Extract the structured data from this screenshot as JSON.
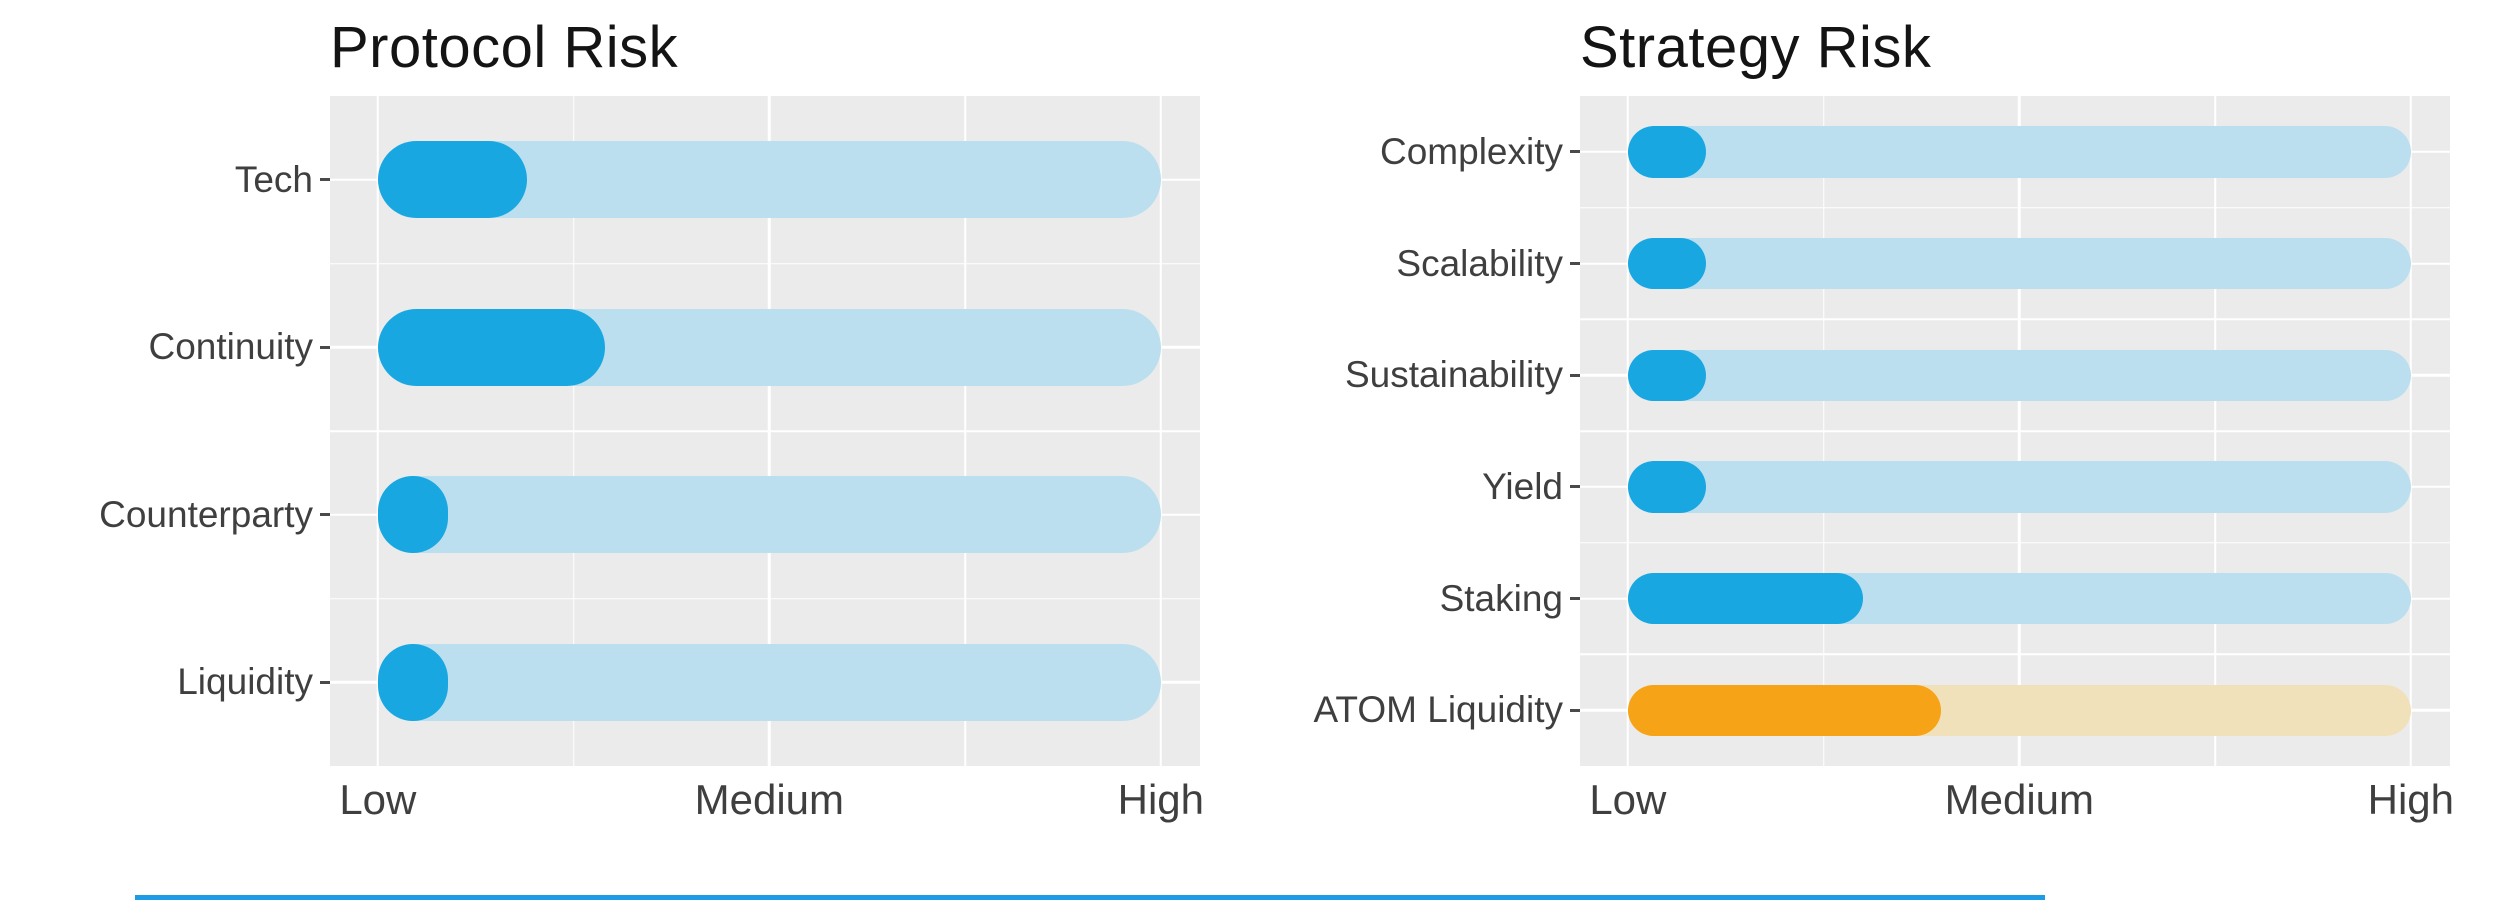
{
  "page": {
    "background": "#FFFFFF"
  },
  "colors": {
    "panel_bg": "#EBEBEB",
    "gridline": "#FFFFFF",
    "bar_blue": "#19A7E2",
    "track_blue": "#BCDFEF",
    "bar_orange": "#F6A318",
    "track_orange": "#F1E1BB",
    "title_text": "#141414",
    "axis_text": "#3F3F3F",
    "divider_blue": "#1E9BE5"
  },
  "chart_data": [
    {
      "type": "bar",
      "orientation": "horizontal",
      "title": "Protocol Risk",
      "categories": [
        "Tech",
        "Continuity",
        "Counterparty",
        "Liquidity"
      ],
      "values": [
        0.19,
        0.29,
        0.09,
        0.09
      ],
      "value_scale": "fraction of Low-to-High axis",
      "bar_colors": [
        "#19A7E2",
        "#19A7E2",
        "#19A7E2",
        "#19A7E2"
      ],
      "track_colors": [
        "#BCDFEF",
        "#BCDFEF",
        "#BCDFEF",
        "#BCDFEF"
      ],
      "xlabel": "",
      "ylabel": "",
      "xlim": [
        0,
        1
      ],
      "x_ticks": [
        {
          "label": "Low",
          "pos": 0
        },
        {
          "label": "Medium",
          "pos": 0.5
        },
        {
          "label": "High",
          "pos": 1
        }
      ],
      "grid": "white major and minor gridlines on grey panel",
      "legend": "none"
    },
    {
      "type": "bar",
      "orientation": "horizontal",
      "title": "Strategy Risk",
      "categories": [
        "Complexity",
        "Scalability",
        "Sustainability",
        "Yield",
        "Staking",
        "ATOM Liquidity"
      ],
      "values": [
        0.1,
        0.1,
        0.1,
        0.1,
        0.3,
        0.4
      ],
      "value_scale": "fraction of Low-to-High axis",
      "bar_colors": [
        "#19A7E2",
        "#19A7E2",
        "#19A7E2",
        "#19A7E2",
        "#19A7E2",
        "#F6A318"
      ],
      "track_colors": [
        "#BCDFEF",
        "#BCDFEF",
        "#BCDFEF",
        "#BCDFEF",
        "#BCDFEF",
        "#F1E1BB"
      ],
      "xlabel": "",
      "ylabel": "",
      "xlim": [
        0,
        1
      ],
      "x_ticks": [
        {
          "label": "Low",
          "pos": 0
        },
        {
          "label": "Medium",
          "pos": 0.5
        },
        {
          "label": "High",
          "pos": 1
        }
      ],
      "grid": "white major and minor gridlines on grey panel",
      "legend": "none"
    }
  ],
  "divider": {
    "visible": true
  }
}
